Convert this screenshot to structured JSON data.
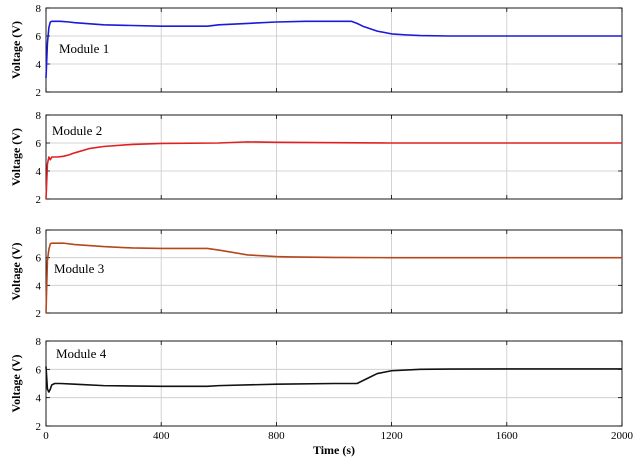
{
  "chart_data": [
    {
      "type": "line",
      "label": "Module 1",
      "ylabel": "Voltage (V)",
      "ylim": [
        2,
        8
      ],
      "yticks": [
        "2",
        "4",
        "6",
        "8"
      ],
      "xlim": [
        0,
        2000
      ],
      "color": "#1a1adb",
      "grid": true,
      "series": [
        {
          "x": [
            0,
            5,
            10,
            15,
            20,
            30,
            50,
            80,
            100,
            200,
            400,
            560,
            600,
            700,
            800,
            900,
            1000,
            1060,
            1080,
            1100,
            1150,
            1200,
            1250,
            1300,
            1400,
            1600,
            1800,
            2000
          ],
          "y": [
            3.0,
            5.5,
            6.6,
            7.0,
            7.05,
            7.05,
            7.05,
            7.0,
            6.95,
            6.8,
            6.7,
            6.7,
            6.8,
            6.9,
            7.0,
            7.05,
            7.05,
            7.05,
            6.9,
            6.7,
            6.35,
            6.15,
            6.08,
            6.03,
            6.0,
            6.0,
            6.0,
            6.0
          ]
        }
      ]
    },
    {
      "type": "line",
      "label": "Module 2",
      "ylabel": "Voltage (V)",
      "ylim": [
        2,
        8
      ],
      "yticks": [
        "2",
        "4",
        "6",
        "8"
      ],
      "xlim": [
        0,
        2000
      ],
      "color": "#e02020",
      "grid": true,
      "series": [
        {
          "x": [
            0,
            5,
            10,
            15,
            20,
            40,
            60,
            80,
            100,
            150,
            200,
            300,
            400,
            600,
            700,
            800,
            1000,
            1200,
            1400,
            1600,
            1800,
            2000
          ],
          "y": [
            2.0,
            4.5,
            5.0,
            4.8,
            5.0,
            5.0,
            5.05,
            5.15,
            5.3,
            5.6,
            5.75,
            5.9,
            5.97,
            6.0,
            6.08,
            6.05,
            6.02,
            6.0,
            6.0,
            6.0,
            6.0,
            6.0
          ]
        }
      ]
    },
    {
      "type": "line",
      "label": "Module 3",
      "ylabel": "Voltage (V)",
      "ylim": [
        2,
        8
      ],
      "yticks": [
        "2",
        "4",
        "6",
        "8"
      ],
      "xlim": [
        0,
        2000
      ],
      "color": "#b5471e",
      "grid": true,
      "series": [
        {
          "x": [
            0,
            5,
            10,
            15,
            20,
            60,
            100,
            200,
            300,
            400,
            560,
            600,
            700,
            800,
            850,
            1000,
            1200,
            1400,
            1600,
            1800,
            2000
          ],
          "y": [
            2.0,
            5.8,
            6.6,
            7.0,
            7.05,
            7.05,
            6.95,
            6.8,
            6.7,
            6.67,
            6.67,
            6.55,
            6.2,
            6.08,
            6.05,
            6.02,
            6.0,
            6.0,
            6.0,
            6.0,
            6.0
          ]
        }
      ]
    },
    {
      "type": "line",
      "label": "Module 4",
      "ylabel": "Voltage (V)",
      "xlabel": "Time (s)",
      "ylim": [
        2,
        8
      ],
      "yticks": [
        "2",
        "4",
        "6",
        "8"
      ],
      "xlim": [
        0,
        2000
      ],
      "xticks": [
        "0",
        "400",
        "800",
        "1200",
        "1600",
        "2000"
      ],
      "color": "#111111",
      "grid": true,
      "series": [
        {
          "x": [
            0,
            5,
            10,
            15,
            20,
            30,
            50,
            100,
            200,
            400,
            560,
            600,
            800,
            1000,
            1080,
            1110,
            1150,
            1200,
            1300,
            1400,
            1600,
            1800,
            2000
          ],
          "y": [
            6.2,
            4.6,
            4.4,
            4.6,
            4.9,
            5.0,
            5.0,
            4.95,
            4.85,
            4.8,
            4.8,
            4.85,
            4.95,
            5.0,
            5.0,
            5.3,
            5.7,
            5.9,
            6.0,
            6.02,
            6.03,
            6.03,
            6.03
          ]
        }
      ]
    }
  ]
}
